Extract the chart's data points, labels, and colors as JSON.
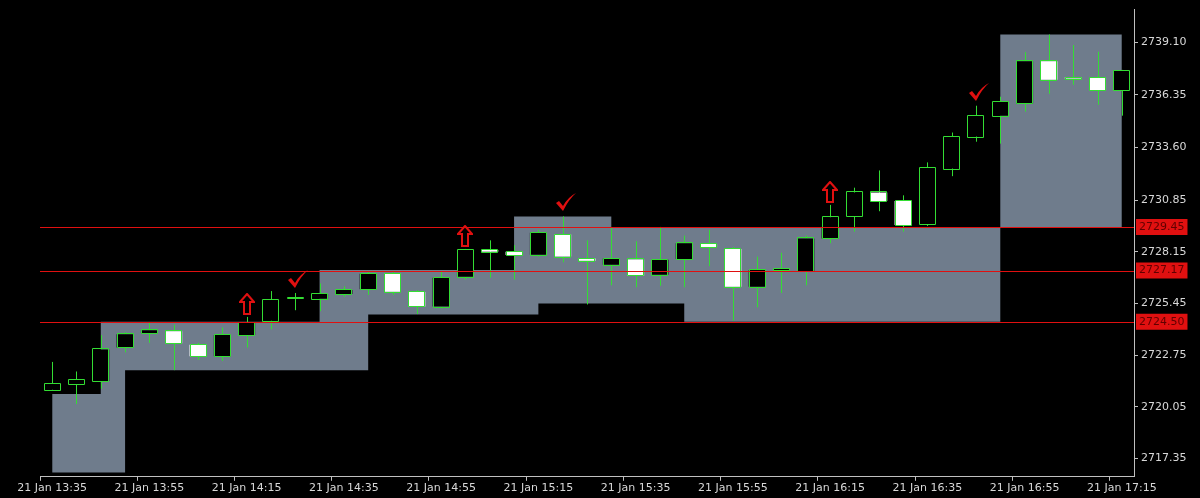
{
  "chart_data": {
    "type": "candlestick",
    "categories": [
      "21 Jan 13:35",
      null,
      null,
      null,
      "21 Jan 13:55",
      null,
      null,
      null,
      "21 Jan 14:15",
      null,
      null,
      null,
      "21 Jan 14:35",
      null,
      null,
      null,
      "21 Jan 14:55",
      null,
      null,
      null,
      "21 Jan 15:15",
      null,
      null,
      null,
      "21 Jan 15:35",
      null,
      null,
      null,
      "21 Jan 15:55",
      null,
      null,
      null,
      "21 Jan 16:15",
      null,
      null,
      null,
      "21 Jan 16:35",
      null,
      null,
      null,
      "21 Jan 16:55",
      null,
      null,
      null,
      "21 Jan 17:15"
    ],
    "series": [
      {
        "type": "step",
        "color": "#6f7c8c",
        "values": [
          null,
          null,
          null,
          null,
          null,
          null,
          null,
          null,
          null,
          null,
          null,
          null,
          null,
          null,
          null,
          null,
          null,
          null,
          null,
          null,
          null,
          null,
          null,
          null,
          null,
          null,
          null,
          null,
          null,
          null,
          null,
          null,
          null,
          null,
          null,
          null,
          null,
          null,
          null,
          null,
          null,
          null,
          null,
          null,
          null
        ],
        "lower": [
          2716.62,
          2716.62,
          2716.62,
          2716.62,
          2721.97,
          2721.97,
          2721.97,
          2721.97,
          2721.97,
          2721.97,
          2721.97,
          2721.97,
          2721.97,
          2721.97,
          2724.87,
          2724.87,
          2724.87,
          2724.87,
          2724.87,
          2724.87,
          2724.87,
          2725.45,
          2725.45,
          2725.45,
          2725.45,
          2725.45,
          2725.45,
          2724.5,
          2724.5,
          2724.5,
          2724.5,
          2724.5,
          2724.5,
          2724.5,
          2724.5,
          2724.5,
          2724.5,
          2724.5,
          2724.5,
          2724.5,
          2729.45,
          2729.45,
          2729.45,
          2729.45,
          2729.45
        ],
        "upper": [
          2720.72,
          2720.72,
          2720.72,
          2724.5,
          2724.5,
          2724.5,
          2724.5,
          2724.5,
          2724.5,
          2724.5,
          2724.5,
          2724.5,
          2727.2,
          2727.2,
          2727.2,
          2727.2,
          2727.2,
          2727.2,
          2727.2,
          2727.2,
          2730.0,
          2730.0,
          2730.0,
          2730.0,
          2729.45,
          2729.45,
          2729.45,
          2729.45,
          2729.45,
          2729.45,
          2729.45,
          2729.45,
          2729.45,
          2729.45,
          2729.45,
          2729.45,
          2729.45,
          2729.45,
          2729.45,
          2729.45,
          2739.5,
          2739.5,
          2739.5,
          2739.5,
          2739.5
        ]
      },
      {
        "type": "candlestick",
        "color": "#33dd33",
        "colors": [
          "#000000",
          "#000000",
          "#000000",
          "#000000",
          "#000000",
          "#ffffff",
          "#ffffff",
          "#000000",
          "#000000",
          "#000000",
          "#000000",
          "#000000",
          "#000000",
          "#000000",
          "#ffffff",
          "#ffffff",
          "#000000",
          "#000000",
          "#ffffff",
          "#ffffff",
          "#000000",
          "#ffffff",
          "#ffffff",
          "#000000",
          "#ffffff",
          "#000000",
          "#000000",
          "#ffffff",
          "#ffffff",
          "#000000",
          "#000000",
          "#000000",
          "#000000",
          "#000000",
          "#ffffff",
          "#ffffff",
          "#000000",
          "#000000",
          "#000000",
          "#000000",
          "#000000",
          "#ffffff",
          "#ffffff",
          "#ffffff",
          "#000000"
        ],
        "ohlc": [
          [
            2720.95,
            2722.4,
            2720.9,
            2721.25
          ],
          [
            2721.24,
            2721.9,
            2720.2,
            2721.45
          ],
          [
            2721.4,
            2723.8,
            2721.0,
            2723.05
          ],
          [
            2723.15,
            2723.95,
            2722.9,
            2723.84
          ],
          [
            2723.9,
            2724.45,
            2723.4,
            2724.05
          ],
          [
            2724.0,
            2724.35,
            2721.97,
            2723.37
          ],
          [
            2723.3,
            2723.4,
            2722.5,
            2722.7
          ],
          [
            2722.7,
            2724.2,
            2722.45,
            2723.8
          ],
          [
            2723.8,
            2724.75,
            2723.15,
            2724.45
          ],
          [
            2724.55,
            2726.1,
            2724.1,
            2725.65
          ],
          [
            2725.7,
            2726.0,
            2725.1,
            2725.72
          ],
          [
            2725.7,
            2726.5,
            2725.05,
            2725.95
          ],
          [
            2725.95,
            2726.35,
            2725.8,
            2726.15
          ],
          [
            2726.2,
            2727.1,
            2725.9,
            2727.0
          ],
          [
            2727.0,
            2727.1,
            2725.9,
            2726.07
          ],
          [
            2726.05,
            2726.15,
            2724.9,
            2725.3
          ],
          [
            2725.3,
            2727.1,
            2725.2,
            2726.8
          ],
          [
            2726.85,
            2728.3,
            2726.7,
            2728.25
          ],
          [
            2728.25,
            2728.75,
            2726.8,
            2728.15
          ],
          [
            2728.15,
            2728.5,
            2726.7,
            2727.98
          ],
          [
            2728.0,
            2729.3,
            2727.9,
            2729.15
          ],
          [
            2729.05,
            2730.0,
            2727.6,
            2727.9
          ],
          [
            2727.8,
            2728.75,
            2725.4,
            2727.68
          ],
          [
            2727.47,
            2729.4,
            2726.4,
            2727.8
          ],
          [
            2727.75,
            2728.7,
            2726.3,
            2726.9
          ],
          [
            2726.95,
            2729.45,
            2726.38,
            2727.73
          ],
          [
            2727.78,
            2729.0,
            2726.3,
            2728.6
          ],
          [
            2728.56,
            2729.3,
            2727.4,
            2728.4
          ],
          [
            2728.3,
            2728.4,
            2724.55,
            2726.33
          ],
          [
            2726.33,
            2727.9,
            2725.25,
            2727.2
          ],
          [
            2727.2,
            2728.1,
            2726.0,
            2727.25
          ],
          [
            2727.15,
            2729.0,
            2726.4,
            2728.85
          ],
          [
            2728.85,
            2730.6,
            2728.6,
            2729.95
          ],
          [
            2730.0,
            2731.5,
            2729.2,
            2731.25
          ],
          [
            2731.25,
            2732.4,
            2730.27,
            2730.8
          ],
          [
            2730.8,
            2731.1,
            2729.2,
            2729.55
          ],
          [
            2729.6,
            2732.82,
            2729.5,
            2732.55
          ],
          [
            2732.5,
            2734.38,
            2732.1,
            2734.17
          ],
          [
            2734.17,
            2735.78,
            2733.9,
            2735.25
          ],
          [
            2735.25,
            2736.25,
            2733.8,
            2735.98
          ],
          [
            2735.9,
            2738.58,
            2735.47,
            2738.1
          ],
          [
            2738.1,
            2739.5,
            2736.4,
            2737.13
          ],
          [
            2737.25,
            2738.95,
            2736.87,
            2737.2
          ],
          [
            2737.23,
            2738.6,
            2735.83,
            2736.6
          ],
          [
            2736.6,
            2737.65,
            2735.26,
            2737.6
          ]
        ]
      }
    ],
    "ylim": [
      2716.4,
      2740.8
    ],
    "yticks": [
      2717.35,
      2720.05,
      2722.75,
      2725.45,
      2728.15,
      2730.85,
      {
        "value": 2733.6,
        "label": "2733.60"
      },
      2736.35,
      {
        "value": 2739.1,
        "label": "2739.10"
      }
    ],
    "ref_lines": [
      {
        "axis": "y",
        "value": 2729.45,
        "label": "2729.45",
        "color": "#e01010"
      },
      {
        "axis": "y",
        "value": 2727.17,
        "label": "2727.17",
        "color": "#e01010"
      },
      {
        "axis": "y",
        "value": 2724.5,
        "label": "2724.50",
        "color": "#e01010"
      }
    ]
  }
}
